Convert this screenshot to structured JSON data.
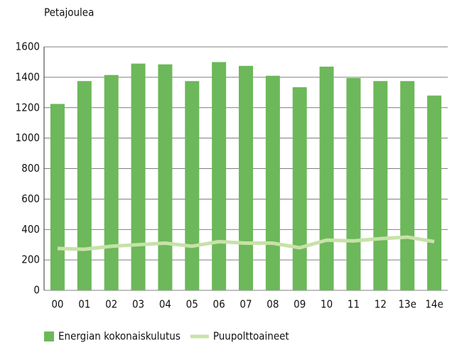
{
  "chart_data": {
    "type": "bar",
    "y_axis_label": "Petajoulea",
    "categories": [
      "00",
      "01",
      "02",
      "03",
      "04",
      "05",
      "06",
      "07",
      "08",
      "09",
      "10",
      "11",
      "12",
      "13e",
      "14e"
    ],
    "series": [
      {
        "name": "Energian kokonaiskulutus",
        "type": "bar",
        "color": "#6cb85a",
        "values": [
          1225,
          1375,
          1415,
          1490,
          1485,
          1375,
          1500,
          1475,
          1410,
          1335,
          1470,
          1395,
          1375,
          1375,
          1280
        ]
      },
      {
        "name": "Puupolttoaineet",
        "type": "line",
        "color": "#c7e2a8",
        "values": [
          275,
          270,
          290,
          300,
          310,
          290,
          320,
          310,
          310,
          280,
          330,
          325,
          340,
          350,
          320
        ]
      }
    ],
    "ylim": [
      0,
      1600
    ],
    "yticks": [
      0,
      200,
      400,
      600,
      800,
      1000,
      1200,
      1400,
      1600
    ],
    "grid": true
  }
}
